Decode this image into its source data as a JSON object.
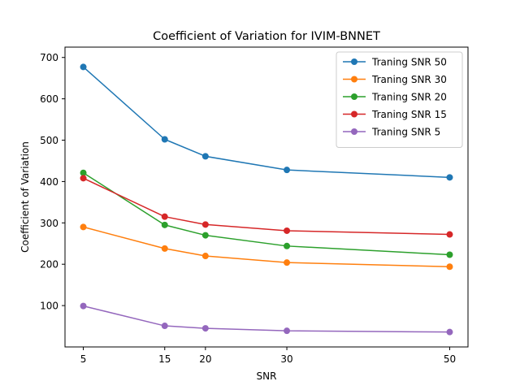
{
  "chart_data": {
    "type": "line",
    "title": "Coefficient of Variation for IVIM-BNNET",
    "xlabel": "SNR",
    "ylabel": "Coefficient of Variation",
    "x": [
      5,
      15,
      20,
      30,
      50
    ],
    "xlim": [
      2.75,
      52.25
    ],
    "ylim": [
      0,
      725
    ],
    "xticks": [
      5,
      15,
      20,
      30,
      50
    ],
    "yticks": [
      100,
      200,
      300,
      400,
      500,
      600,
      700
    ],
    "grid": false,
    "legend_position": "top-right",
    "series": [
      {
        "name": "Traning SNR 50",
        "color": "#1f77b4",
        "values": [
          677,
          502,
          461,
          428,
          410
        ]
      },
      {
        "name": "Traning SNR 30",
        "color": "#ff7f0e",
        "values": [
          290,
          238,
          220,
          204,
          194
        ]
      },
      {
        "name": "Traning SNR 20",
        "color": "#2ca02c",
        "values": [
          421,
          295,
          270,
          244,
          223
        ]
      },
      {
        "name": "Traning SNR 15",
        "color": "#d62728",
        "values": [
          408,
          315,
          296,
          281,
          272
        ]
      },
      {
        "name": "Traning SNR 5",
        "color": "#9467bd",
        "values": [
          99,
          51,
          45,
          39,
          36
        ]
      }
    ]
  }
}
